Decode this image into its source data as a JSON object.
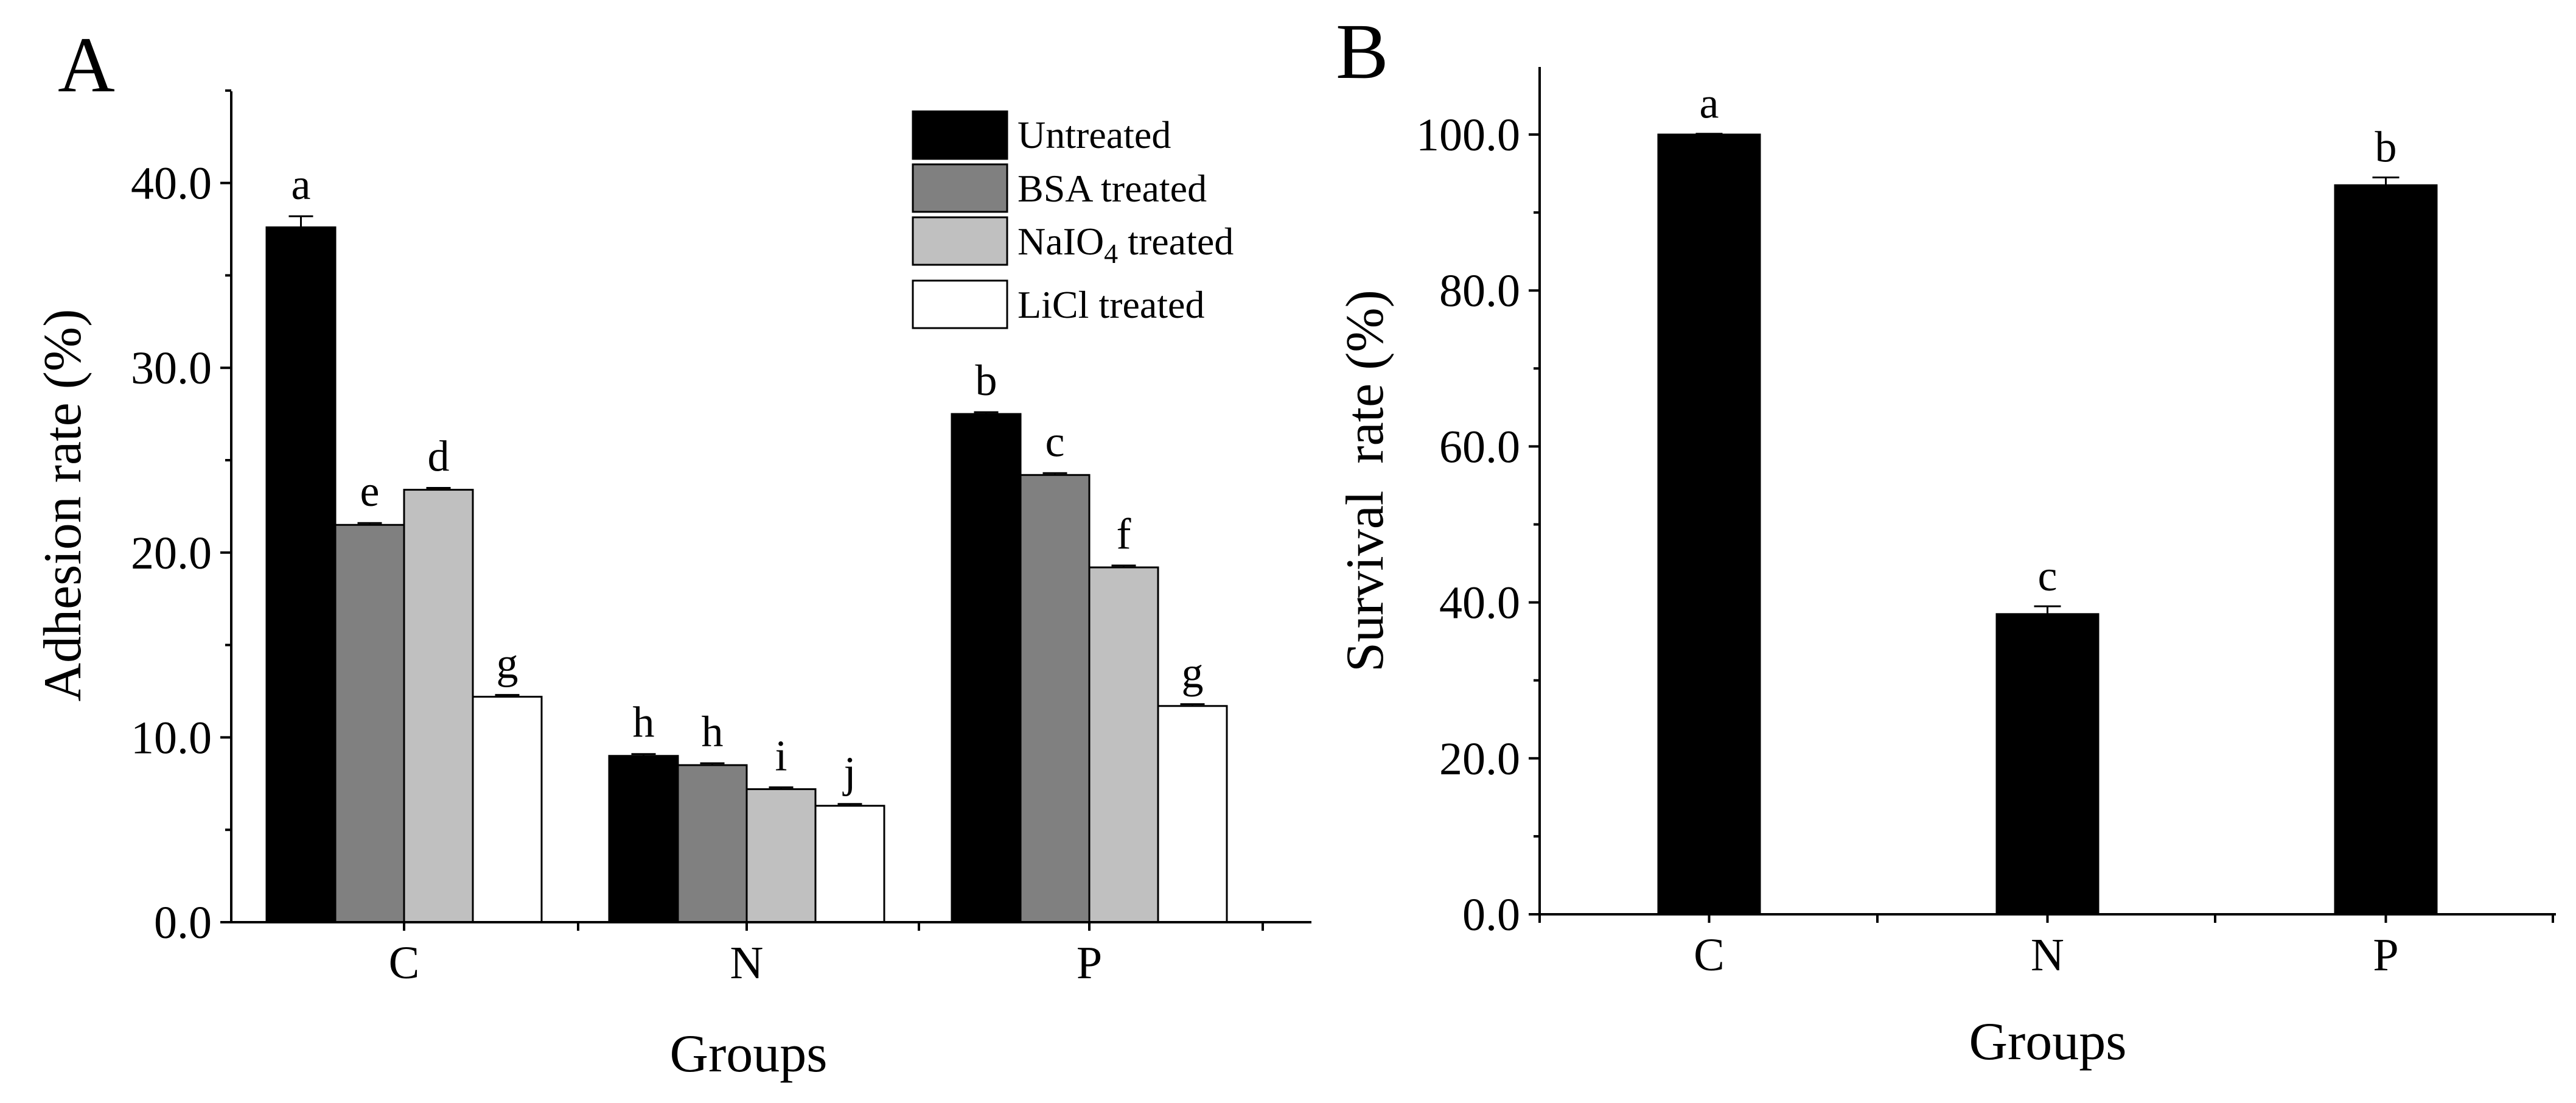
{
  "chart_data": [
    {
      "panel": "A",
      "type": "bar",
      "title": "",
      "xlabel": "Groups",
      "ylabel": "Adhesion rate (%)",
      "ylim": [
        0,
        45
      ],
      "yticks": [
        "0.0",
        "10.0",
        "20.0",
        "30.0",
        "40.0"
      ],
      "ytick_values": [
        0,
        10,
        20,
        30,
        40
      ],
      "categories": [
        "C",
        "N",
        "P"
      ],
      "series": [
        {
          "name": "Untreated",
          "legend_text": "Untreated",
          "color": "#000000",
          "values": [
            37.6,
            9.0,
            27.5
          ],
          "errors": [
            0.6,
            0.1,
            0.1
          ],
          "letters": [
            "a",
            "h",
            "b"
          ]
        },
        {
          "name": "BSA treated",
          "legend_text": "BSA treated",
          "color": "#808080",
          "values": [
            21.5,
            8.5,
            24.2
          ],
          "errors": [
            0.1,
            0.1,
            0.1
          ],
          "letters": [
            "e",
            "h",
            "c"
          ]
        },
        {
          "name": "NaIO4 treated",
          "legend_text": "NaIO",
          "legend_sub": "4",
          "legend_suffix": " treated",
          "color": "#c0c0c0",
          "values": [
            23.4,
            7.2,
            19.2
          ],
          "errors": [
            0.1,
            0.1,
            0.1
          ],
          "letters": [
            "d",
            "i",
            "f"
          ]
        },
        {
          "name": "LiCl treated",
          "legend_text": "LiCl treated",
          "color": "#ffffff",
          "values": [
            12.2,
            6.3,
            11.7
          ],
          "errors": [
            0.1,
            0.1,
            0.1
          ],
          "letters": [
            "g",
            "j",
            "g"
          ]
        }
      ],
      "legend_position": "top-right",
      "grid": false
    },
    {
      "panel": "B",
      "type": "bar",
      "title": "",
      "xlabel": "Groups",
      "ylabel": "Survival  rate (%)",
      "ylim": [
        0,
        106
      ],
      "yticks": [
        "0.0",
        "20.0",
        "40.0",
        "60.0",
        "80.0",
        "100.0"
      ],
      "ytick_values": [
        0,
        20,
        40,
        60,
        80,
        100
      ],
      "categories": [
        "C",
        "N",
        "P"
      ],
      "series": [
        {
          "name": "Survival rate",
          "color": "#000000",
          "values": [
            100.0,
            38.5,
            93.5
          ],
          "errors": [
            0.1,
            1.0,
            1.0
          ],
          "letters": [
            "a",
            "c",
            "b"
          ]
        }
      ],
      "grid": false
    }
  ]
}
